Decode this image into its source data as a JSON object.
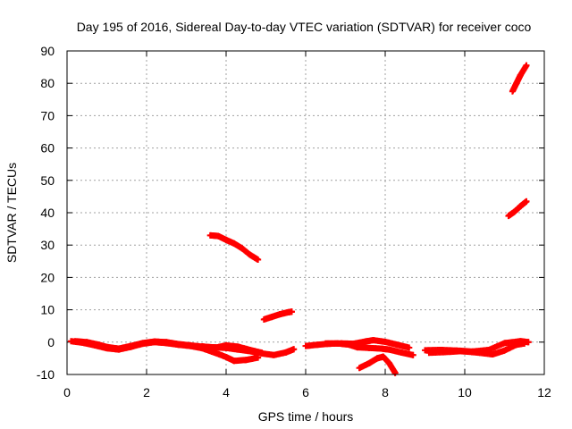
{
  "chart_data": {
    "type": "scatter",
    "title": "Day 195 of 2016, Sidereal Day-to-day VTEC variation (SDTVAR) for receiver coco",
    "xlabel": "GPS time / hours",
    "ylabel": "SDTVAR / TECUs",
    "xlim": [
      0,
      12
    ],
    "ylim": [
      -10,
      90
    ],
    "x_ticks": [
      0,
      2,
      4,
      6,
      8,
      10,
      12
    ],
    "y_ticks": [
      -10,
      0,
      10,
      20,
      30,
      40,
      50,
      60,
      70,
      80,
      90
    ],
    "x_tick_labels": [
      "0",
      "2",
      "4",
      "6",
      "8",
      "10",
      "12"
    ],
    "y_tick_labels": [
      "-10",
      "0",
      "10",
      "20",
      "30",
      "40",
      "50",
      "60",
      "70",
      "80",
      "90"
    ],
    "grid": true,
    "marker": "plus",
    "series": [
      {
        "color": "#ff0000",
        "segments": [
          [
            [
              0.2,
              0.3
            ],
            [
              0.5,
              0.0
            ],
            [
              0.8,
              -0.8
            ],
            [
              1.0,
              -1.5
            ],
            [
              1.3,
              -2.0
            ],
            [
              1.6,
              -1.2
            ],
            [
              1.9,
              -0.3
            ],
            [
              2.2,
              0.2
            ],
            [
              2.5,
              0.0
            ],
            [
              2.8,
              -0.6
            ],
            [
              3.1,
              -1.0
            ],
            [
              3.4,
              -1.4
            ],
            [
              3.7,
              -1.6
            ],
            [
              4.0,
              -1.8
            ],
            [
              4.3,
              -2.3
            ],
            [
              4.6,
              -2.8
            ],
            [
              4.9,
              -3.5
            ],
            [
              5.2,
              -4.0
            ],
            [
              5.5,
              -3.2
            ],
            [
              5.7,
              -2.2
            ]
          ],
          [
            [
              0.1,
              0.3
            ],
            [
              0.4,
              -0.2
            ],
            [
              0.7,
              -1.0
            ],
            [
              1.0,
              -1.9
            ],
            [
              1.3,
              -2.3
            ],
            [
              1.6,
              -1.5
            ],
            [
              1.9,
              -0.5
            ],
            [
              2.2,
              0.0
            ],
            [
              2.5,
              -0.3
            ],
            [
              2.8,
              -0.8
            ],
            [
              3.1,
              -1.2
            ],
            [
              3.4,
              -1.9
            ],
            [
              3.7,
              -3.2
            ],
            [
              4.0,
              -4.6
            ],
            [
              4.2,
              -5.8
            ],
            [
              4.5,
              -5.5
            ],
            [
              4.8,
              -4.8
            ]
          ],
          [
            [
              3.4,
              -1.3
            ],
            [
              3.7,
              -1.8
            ],
            [
              4.0,
              -1.0
            ],
            [
              4.3,
              -1.4
            ],
            [
              4.6,
              -2.4
            ],
            [
              4.9,
              -3.3
            ]
          ],
          [
            [
              3.6,
              33.0
            ],
            [
              3.8,
              32.8
            ],
            [
              4.0,
              31.6
            ],
            [
              4.2,
              30.5
            ],
            [
              4.4,
              29.0
            ],
            [
              4.6,
              27.0
            ],
            [
              4.8,
              25.5
            ]
          ],
          [
            [
              4.95,
              7.0
            ],
            [
              5.15,
              7.8
            ],
            [
              5.35,
              8.6
            ],
            [
              5.55,
              9.2
            ],
            [
              5.65,
              9.4
            ]
          ],
          [
            [
              6.0,
              -1.2
            ],
            [
              6.3,
              -0.8
            ],
            [
              6.6,
              -0.5
            ],
            [
              6.9,
              -0.4
            ],
            [
              7.2,
              -0.5
            ],
            [
              7.5,
              0.2
            ],
            [
              7.7,
              0.6
            ],
            [
              8.0,
              0.1
            ],
            [
              8.3,
              -0.8
            ],
            [
              8.6,
              -1.7
            ]
          ],
          [
            [
              6.5,
              -0.4
            ],
            [
              6.8,
              -0.4
            ],
            [
              7.1,
              -0.8
            ],
            [
              7.3,
              -1.6
            ],
            [
              7.6,
              -1.8
            ],
            [
              7.9,
              -2.0
            ],
            [
              8.1,
              -2.3
            ],
            [
              8.4,
              -3.2
            ],
            [
              8.7,
              -4.0
            ]
          ],
          [
            [
              7.35,
              -8.0
            ],
            [
              7.6,
              -6.5
            ],
            [
              7.8,
              -5.0
            ],
            [
              7.95,
              -4.5
            ],
            [
              8.1,
              -6.5
            ],
            [
              8.25,
              -9.5
            ]
          ],
          [
            [
              9.0,
              -2.5
            ],
            [
              9.4,
              -2.4
            ],
            [
              9.8,
              -2.6
            ],
            [
              10.2,
              -2.9
            ],
            [
              10.6,
              -2.4
            ],
            [
              11.0,
              -0.3
            ],
            [
              11.4,
              0.3
            ],
            [
              11.6,
              0.0
            ]
          ],
          [
            [
              9.1,
              -3.3
            ],
            [
              9.5,
              -3.1
            ],
            [
              9.9,
              -2.8
            ],
            [
              10.3,
              -3.2
            ],
            [
              10.7,
              -3.8
            ],
            [
              11.0,
              -2.6
            ],
            [
              11.3,
              -0.8
            ],
            [
              11.5,
              -0.4
            ]
          ],
          [
            [
              11.1,
              39.0
            ],
            [
              11.25,
              40.3
            ],
            [
              11.4,
              42.0
            ],
            [
              11.55,
              43.5
            ]
          ],
          [
            [
              11.2,
              77.5
            ],
            [
              11.3,
              80.0
            ],
            [
              11.4,
              82.5
            ],
            [
              11.55,
              85.5
            ]
          ]
        ]
      }
    ]
  }
}
